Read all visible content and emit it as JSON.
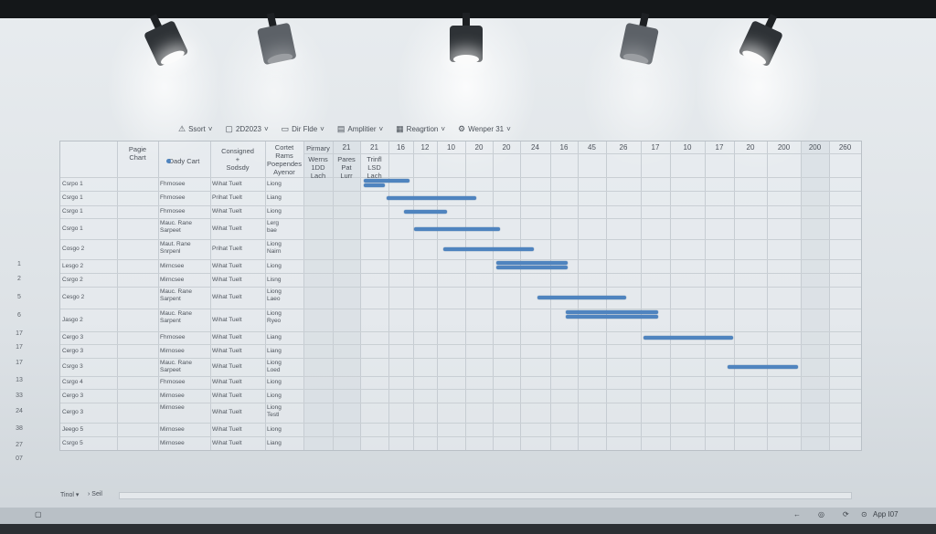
{
  "toolbar": [
    {
      "icon": "warning-icon",
      "glyph": "⚠",
      "label": "Ssort"
    },
    {
      "icon": "calendar-icon",
      "glyph": "▢",
      "label": "2D2023"
    },
    {
      "icon": "folder-icon",
      "glyph": "▭",
      "label": "Dir Flde"
    },
    {
      "icon": "document-icon",
      "glyph": "▤",
      "label": "Amplitier"
    },
    {
      "icon": "grid-icon",
      "glyph": "▦",
      "label": "Reagrtion"
    },
    {
      "icon": "settings-icon",
      "glyph": "⚙",
      "label": "Wenper 31"
    }
  ],
  "header": {
    "task": "Pagie\nChart",
    "type": "Dady Cart",
    "assigned": "Consigned\n+\nSodsdy",
    "status": "Cortet\nRams\nPoependes\nAyenor",
    "primary": "Pirmary",
    "primary_sub": "Werns\n1DD\nLach",
    "c2_sub": "Pares\nPat\nLurr",
    "c3_sub": "Trinfl\nLSD\nLach"
  },
  "timeline_numbers": [
    "21",
    "21",
    "16",
    "12",
    "10",
    "20",
    "20",
    "24",
    "16",
    "45",
    "26",
    "17",
    "10",
    "17",
    "20",
    "200",
    "200",
    "260"
  ],
  "rows": [
    {
      "task": "Csrpo 1",
      "type": "Fhrnosee",
      "assigned": "Wihat Tuelt",
      "status": "Liong",
      "bars": [
        [
          397,
          447
        ],
        [
          397,
          420
        ]
      ]
    },
    {
      "task": "Csrgo 1",
      "type": "Fhrnosee",
      "assigned": "Prihat Tuelt",
      "status": "Liang",
      "bars": [
        [
          422,
          520
        ]
      ]
    },
    {
      "task": "Csrgo 1",
      "type": "Fhrnosee",
      "assigned": "Wihat Tuelt",
      "status": "Liong",
      "bars": [
        [
          441,
          488
        ]
      ]
    },
    {
      "task": "Csrgo 1",
      "type": "Mauc. Rane\nSarpeet",
      "assigned": "Wihat Tuelt",
      "status": "Lerg\nbae",
      "bars": [
        [
          452,
          546
        ]
      ]
    },
    {
      "task": "Cosgo 2",
      "type": "Maut. Rane\nSnrpenl",
      "assigned": "Prihat Tuelt",
      "status": "Liong\nNairn",
      "bars": [
        [
          484,
          583
        ]
      ]
    },
    {
      "task": "Lesgo 2",
      "type": "Mirncsee",
      "assigned": "Wihat Tuelt",
      "status": "Liong",
      "bars": [
        [
          542,
          620
        ],
        [
          542,
          620
        ]
      ]
    },
    {
      "task": "Csrgo 2",
      "type": "Mirncsee",
      "assigned": "Wihat Tuelt",
      "status": "Lisng",
      "bars": []
    },
    {
      "task": "Cesgo 2",
      "type": "Mauc. Rane\nSarpent",
      "assigned": "Wihat Tuelt",
      "status": "Liong\nLaeo",
      "bars": [
        [
          587,
          684
        ]
      ]
    },
    {
      "task": "Jasgo 2",
      "type": "Mauc. Rane\nSarpent",
      "assigned": "Wihat Tuelt",
      "status": "Liong\nRyeo",
      "bars": [
        [
          618,
          719
        ],
        [
          618,
          719
        ]
      ]
    },
    {
      "task": "Cergo 3",
      "type": "Fhrnosee",
      "assigned": "Wihat Tuelt",
      "status": "Liang",
      "bars": [
        [
          703,
          801
        ]
      ]
    },
    {
      "task": "Cergo 3",
      "type": "Mirnosee",
      "assigned": "Wihat Tuelt",
      "status": "Liang",
      "bars": []
    },
    {
      "task": "Csrgo 3",
      "type": "Mauc. Rane\nSarpeet",
      "assigned": "Wihat Tuelt",
      "status": "Liong\nLoed",
      "bars": [
        [
          795,
          872
        ]
      ]
    },
    {
      "task": "Csrgo 4",
      "type": "Fhrnosee",
      "assigned": "Wihat Tuelt",
      "status": "Liong",
      "bars": []
    },
    {
      "task": "Cergo 3",
      "type": "Mirnosee",
      "assigned": "Wihat Tuelt",
      "status": "Liong",
      "bars": []
    },
    {
      "task": "Cergo 3",
      "type": "Mirnosee",
      "assigned": "Wihat Tuelt",
      "status": "Liong\nTestl",
      "bars": []
    },
    {
      "task": "Jeego 5",
      "type": "Mirnosee",
      "assigned": "Wihat Tuelt",
      "status": "Liong",
      "bars": []
    },
    {
      "task": "Csrgo 5",
      "type": "Mirnosee",
      "assigned": "Wihat Tuelt",
      "status": "Liang",
      "bars": []
    }
  ],
  "left_numbers": [
    "1",
    "2",
    "5",
    "6",
    "17",
    "17",
    "17",
    "13",
    "33",
    "24",
    "38",
    "27",
    "07"
  ],
  "bottom": {
    "left": "Tinol",
    "arrow": "›",
    "label": "Seil"
  },
  "status": {
    "left_icon": "▢",
    "right_text": "App I07"
  },
  "colors": {
    "bar": "#4f84bf"
  }
}
